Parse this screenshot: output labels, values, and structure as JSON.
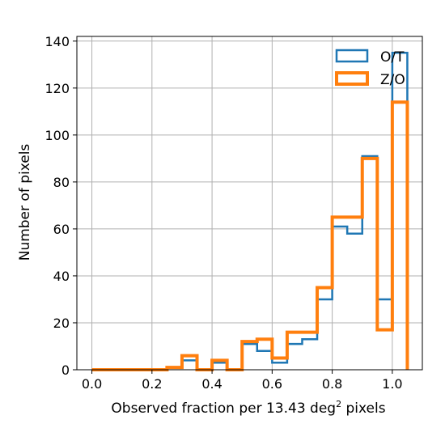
{
  "chart_data": {
    "type": "histogram",
    "xlabel": "Observed fraction per 13.43 deg",
    "xlabel_superscript": "2",
    "xlabel_suffix": " pixels",
    "ylabel": "Number of pixels",
    "xlim": [
      -0.05,
      1.1
    ],
    "ylim": [
      0,
      142
    ],
    "x_ticks": [
      0.0,
      0.2,
      0.4,
      0.6,
      0.8,
      1.0
    ],
    "x_tick_labels": [
      "0.0",
      "0.2",
      "0.4",
      "0.6",
      "0.8",
      "1.0"
    ],
    "y_ticks": [
      0,
      20,
      40,
      60,
      80,
      100,
      120,
      140
    ],
    "y_tick_labels": [
      "0",
      "20",
      "40",
      "60",
      "80",
      "100",
      "120",
      "140"
    ],
    "grid": true,
    "legend_position": "top-right",
    "bin_edges": [
      0.0,
      0.05,
      0.1,
      0.15,
      0.2,
      0.25,
      0.3,
      0.35,
      0.4,
      0.45,
      0.5,
      0.55,
      0.6,
      0.65,
      0.7,
      0.75,
      0.8,
      0.85,
      0.9,
      0.95,
      1.0,
      1.05
    ],
    "series": [
      {
        "name": "O/T",
        "color": "#1f77b4",
        "counts": [
          0,
          0,
          0,
          0,
          0,
          1,
          4,
          0,
          3,
          0,
          11,
          8,
          3,
          11,
          13,
          30,
          61,
          58,
          91,
          30,
          135
        ]
      },
      {
        "name": "Z/O",
        "color": "#ff7f0e",
        "counts": [
          0,
          0,
          0,
          0,
          0,
          1,
          6,
          0,
          4,
          0,
          12,
          13,
          5,
          16,
          16,
          35,
          65,
          65,
          90,
          17,
          114
        ]
      }
    ]
  }
}
